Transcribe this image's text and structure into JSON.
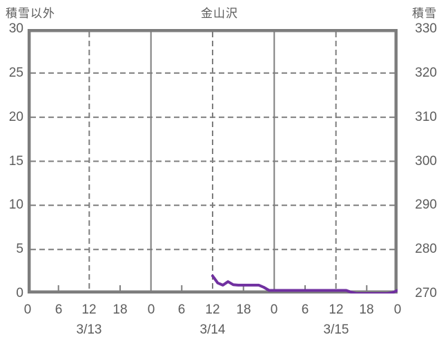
{
  "chart_data": {
    "type": "line",
    "title": "金山沢",
    "left_axis": {
      "title": "積雪以外",
      "min": 0,
      "max": 30,
      "ticks": [
        0,
        5,
        10,
        15,
        20,
        25,
        30
      ]
    },
    "right_axis": {
      "title": "積雪",
      "min": 270,
      "max": 330,
      "ticks": [
        270,
        280,
        290,
        300,
        310,
        320,
        330
      ]
    },
    "x_axis": {
      "span_hours": 72,
      "hour_label_interval": 6,
      "hour_labels": [
        "0",
        "6",
        "12",
        "18",
        "0",
        "6",
        "12",
        "18",
        "0",
        "6",
        "12",
        "18",
        "0"
      ],
      "day_labels": [
        {
          "label": "3/13",
          "at_hour": 12
        },
        {
          "label": "3/14",
          "at_hour": 36
        },
        {
          "label": "3/15",
          "at_hour": 60
        }
      ],
      "gridlines": {
        "dashed_at_hours": [
          12,
          36,
          60
        ],
        "solid_at_hours": [
          24,
          48
        ]
      },
      "minor_tick_hours": [
        6,
        18,
        30,
        42,
        54,
        66
      ]
    },
    "grid": {
      "horizontal_dashed": true,
      "vertical_dashed_at_noon": true,
      "vertical_solid_at_midnight": true
    },
    "series": [
      {
        "name": "積雪",
        "axis": "right",
        "color": "#7030A0",
        "points_hour_value": [
          [
            36,
            274.0
          ],
          [
            37,
            272.4
          ],
          [
            38,
            271.9
          ],
          [
            39,
            272.7
          ],
          [
            40,
            272.0
          ],
          [
            41,
            271.9
          ],
          [
            42,
            271.9
          ],
          [
            43,
            271.9
          ],
          [
            44,
            271.9
          ],
          [
            45,
            271.9
          ],
          [
            46,
            271.4
          ],
          [
            47,
            270.7
          ],
          [
            48,
            270.7
          ],
          [
            49,
            270.7
          ],
          [
            50,
            270.7
          ],
          [
            51,
            270.7
          ],
          [
            52,
            270.7
          ],
          [
            53,
            270.7
          ],
          [
            54,
            270.7
          ],
          [
            55,
            270.7
          ],
          [
            56,
            270.7
          ],
          [
            57,
            270.7
          ],
          [
            58,
            270.7
          ],
          [
            59,
            270.7
          ],
          [
            60,
            270.7
          ],
          [
            61,
            270.7
          ],
          [
            62,
            270.7
          ],
          [
            63,
            270.3
          ],
          [
            64,
            270.0
          ],
          [
            65,
            270.0
          ],
          [
            66,
            270.0
          ],
          [
            67,
            270.0
          ],
          [
            68,
            270.0
          ],
          [
            69,
            270.0
          ],
          [
            70,
            270.0
          ],
          [
            71,
            270.2
          ],
          [
            72,
            270.7
          ]
        ]
      }
    ],
    "colors": {
      "text": "#5c5c5c",
      "grid": "#7d7d7d",
      "border": "#7d7d7d",
      "series_purple": "#7030A0"
    }
  }
}
